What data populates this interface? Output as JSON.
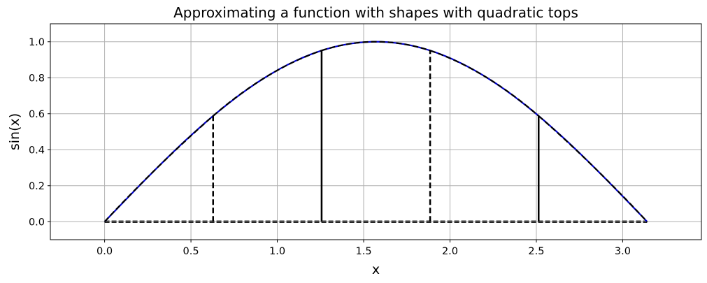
{
  "chart_data": {
    "type": "line",
    "title": "Approximating a function with shapes with quadratic tops",
    "xlabel": "x",
    "ylabel": "sin(x)",
    "xlim": [
      -0.3142,
      3.4558
    ],
    "ylim": [
      -0.1,
      1.1
    ],
    "grid": true,
    "x_ticks": [
      0.0,
      0.5,
      1.0,
      1.5,
      2.0,
      2.5,
      3.0
    ],
    "x_tick_labels": [
      "0.0",
      "0.5",
      "1.0",
      "1.5",
      "2.0",
      "2.5",
      "3.0"
    ],
    "y_ticks": [
      0.0,
      0.2,
      0.4,
      0.6,
      0.8,
      1.0
    ],
    "y_tick_labels": [
      "0.0",
      "0.2",
      "0.4",
      "0.6",
      "0.8",
      "1.0"
    ],
    "function": "sin(x)",
    "function_domain": [
      0,
      3.14159
    ],
    "function_color": "#0000cc",
    "approx_color": "#000000",
    "baseline_color": "#000000",
    "grid_color": "#b0b0b0",
    "segment_edges": [
      0.0,
      0.6283,
      1.2566,
      1.885,
      2.5133,
      3.1416
    ],
    "edge_heights": [
      0.0,
      0.5878,
      0.9511,
      0.9511,
      0.5878,
      0.0
    ],
    "edge_styles": [
      "none",
      "dashed",
      "solid",
      "dashed",
      "solid",
      "none"
    ],
    "segments": [
      {
        "x": [
          0.0,
          0.3142,
          0.6283
        ],
        "y": [
          0.0,
          0.309,
          0.5878
        ]
      },
      {
        "x": [
          0.6283,
          0.9425,
          1.2566
        ],
        "y": [
          0.5878,
          0.809,
          0.9511
        ]
      },
      {
        "x": [
          1.2566,
          1.5708,
          1.885
        ],
        "y": [
          0.9511,
          1.0,
          0.9511
        ]
      },
      {
        "x": [
          1.885,
          2.1991,
          2.5133
        ],
        "y": [
          0.9511,
          0.809,
          0.5878
        ]
      },
      {
        "x": [
          2.5133,
          2.8274,
          3.1416
        ],
        "y": [
          0.5878,
          0.309,
          0.0
        ]
      }
    ]
  }
}
